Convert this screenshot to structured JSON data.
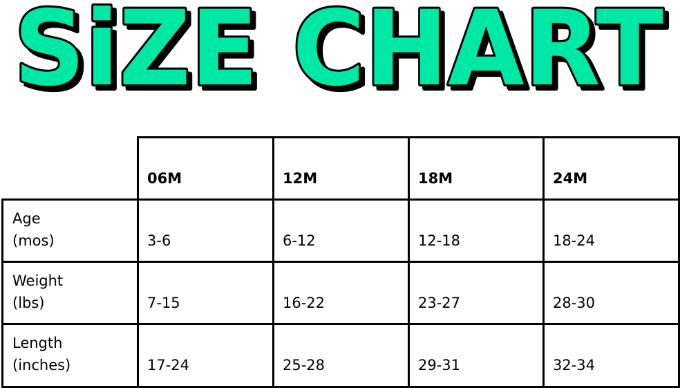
{
  "title": "SiZE CHART",
  "colors": {
    "title_fill": "#00E8A6",
    "title_outline": "#000000",
    "grid": "#000000"
  },
  "table": {
    "columns": [
      "06M",
      "12M",
      "18M",
      "24M"
    ],
    "rows": [
      {
        "label_line1": "Age",
        "label_line2": "(mos)",
        "values": [
          "3-6",
          "6-12",
          "12-18",
          "18-24"
        ]
      },
      {
        "label_line1": "Weight",
        "label_line2": "(lbs)",
        "values": [
          "7-15",
          "16-22",
          "23-27",
          "28-30"
        ]
      },
      {
        "label_line1": "Length",
        "label_line2": "(inches)",
        "values": [
          "17-24",
          "25-28",
          "29-31",
          "32-34"
        ]
      }
    ]
  }
}
